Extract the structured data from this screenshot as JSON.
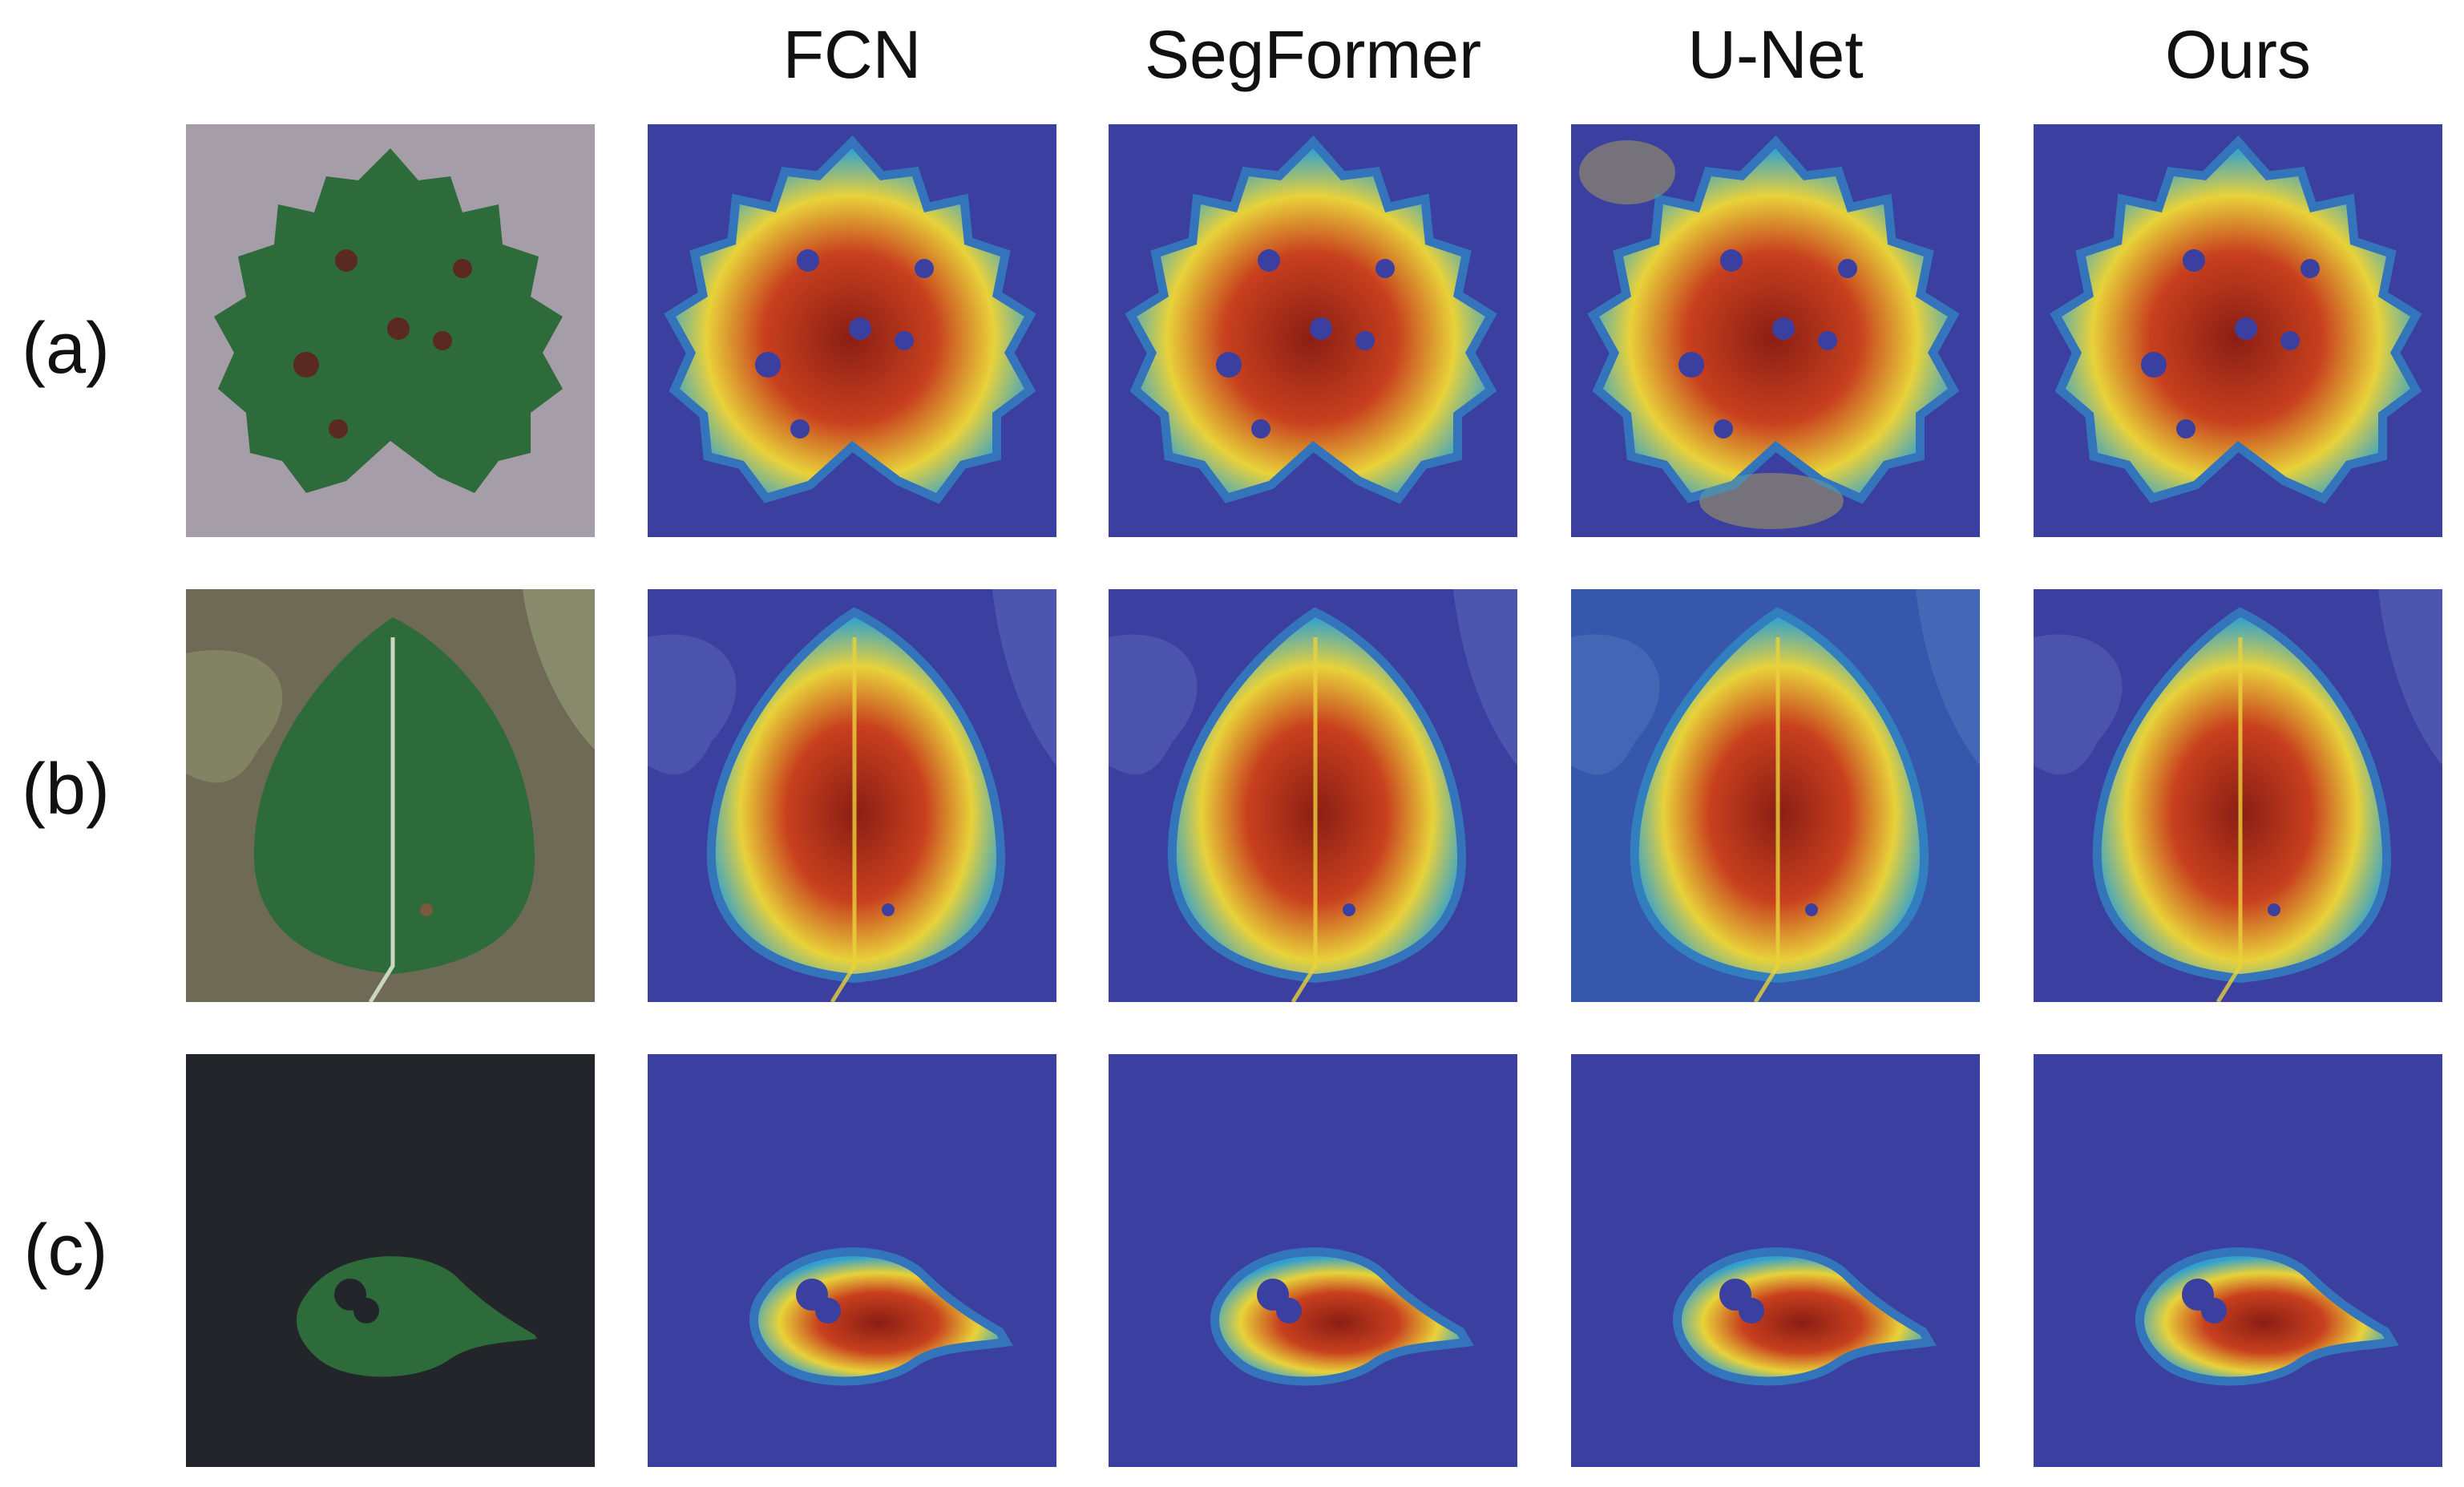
{
  "figure": {
    "columns": [
      {
        "id": "original",
        "label": ""
      },
      {
        "id": "fcn",
        "label": "FCN"
      },
      {
        "id": "segformer",
        "label": "SegFormer"
      },
      {
        "id": "unet",
        "label": "U-Net"
      },
      {
        "id": "ours",
        "label": "Ours"
      }
    ],
    "rows": [
      {
        "id": "a",
        "label": "(a)",
        "subject": "grape leaf with brown lesions and holes",
        "background": "gray surface"
      },
      {
        "id": "b",
        "label": "(b)",
        "subject": "apple leaf on branch",
        "background": "foliage"
      },
      {
        "id": "c",
        "label": "(c)",
        "subject": "small leaf with hole",
        "background": "black surface"
      }
    ],
    "colors": {
      "heat_background": "#3a3fa0",
      "heat_low": "#2fa0d0",
      "heat_mid": "#e8d23a",
      "heat_high": "#c8401e",
      "heat_peak": "#8a1e14",
      "leaf_green": "#2e6b3a",
      "page_background": "#ffffff"
    }
  }
}
